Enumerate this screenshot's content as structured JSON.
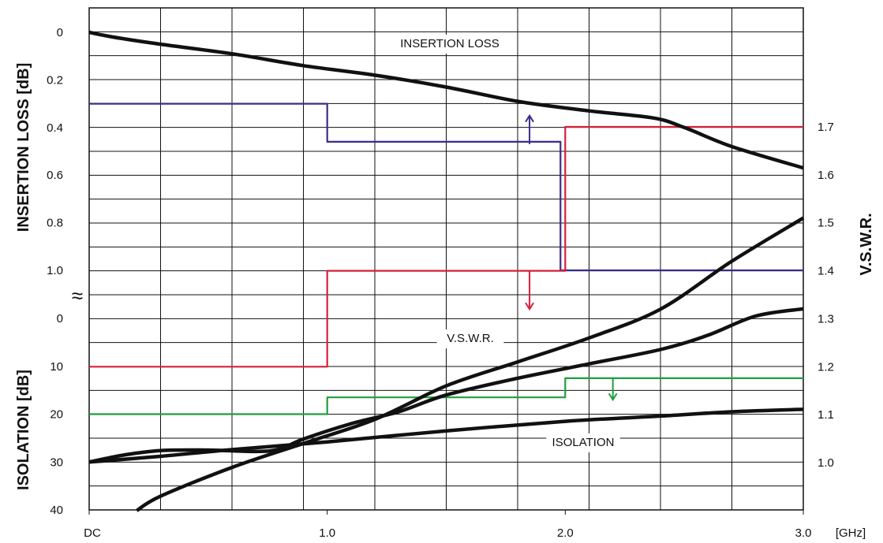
{
  "chart_data": {
    "type": "line",
    "x_axis": {
      "range": [
        0,
        3.0
      ],
      "tick_values": [
        0,
        1.0,
        2.0,
        3.0
      ],
      "tick_labels": [
        "DC",
        "1.0",
        "2.0",
        "3.0"
      ],
      "unit_label": "[GHz]",
      "grid": true
    },
    "left_axis_top": {
      "label": "INSERTION LOSS [dB]",
      "range": [
        0,
        1.0
      ],
      "inverted": true,
      "tick_values": [
        0,
        0.2,
        0.4,
        0.6,
        0.8,
        1.0
      ],
      "tick_labels": [
        "0",
        "0.2",
        "0.4",
        "0.6",
        "0.8",
        "1.0"
      ]
    },
    "left_axis_bottom": {
      "label": "ISOLATION [dB]",
      "range": [
        0,
        40
      ],
      "inverted": true,
      "tick_values": [
        0,
        10,
        20,
        30,
        40
      ],
      "tick_labels": [
        "0",
        "10",
        "20",
        "30",
        "40"
      ]
    },
    "axis_break_symbol": "≈",
    "right_axis": {
      "label": "V.S.W.R.",
      "range": [
        0.9,
        1.8
      ],
      "tick_values": [
        1.0,
        1.1,
        1.2,
        1.3,
        1.4,
        1.5,
        1.6,
        1.7
      ],
      "tick_labels": [
        "1.0",
        "1.1",
        "1.2",
        "1.3",
        "1.4",
        "1.5",
        "1.6",
        "1.7"
      ]
    },
    "annotations": [
      "INSERTION   LOSS",
      "V.S.W.R.",
      "ISOLATION"
    ],
    "series": [
      {
        "axis": "insertion_loss",
        "style": "curve",
        "color": "#111111",
        "points": [
          [
            0,
            0
          ],
          [
            0.1,
            0.02
          ],
          [
            0.3,
            0.05
          ],
          [
            0.6,
            0.09
          ],
          [
            0.9,
            0.14
          ],
          [
            1.2,
            0.18
          ],
          [
            1.5,
            0.23
          ],
          [
            1.8,
            0.29
          ],
          [
            2.1,
            0.33
          ],
          [
            2.37,
            0.36
          ],
          [
            2.5,
            0.4
          ],
          [
            2.7,
            0.48
          ],
          [
            3.0,
            0.57
          ]
        ]
      },
      {
        "axis": "vswr",
        "style": "curve",
        "color": "#111111",
        "points": [
          [
            0.2,
            0.9
          ],
          [
            0.3,
            0.93
          ],
          [
            0.6,
            0.99
          ],
          [
            0.9,
            1.04
          ],
          [
            1.2,
            1.09
          ],
          [
            1.5,
            1.16
          ],
          [
            1.8,
            1.21
          ],
          [
            2.1,
            1.26
          ],
          [
            2.4,
            1.32
          ],
          [
            2.7,
            1.42
          ],
          [
            3.0,
            1.51
          ]
        ]
      },
      {
        "axis": "isolation",
        "style": "curve",
        "color": "#111111",
        "points": [
          [
            0,
            30
          ],
          [
            0.15,
            28.5
          ],
          [
            0.3,
            27.6
          ],
          [
            0.5,
            27.5
          ],
          [
            0.7,
            27.8
          ],
          [
            0.8,
            27.3
          ],
          [
            0.9,
            25.2
          ],
          [
            1.1,
            22.0
          ],
          [
            1.3,
            19.5
          ],
          [
            1.5,
            16.0
          ],
          [
            1.8,
            12.5
          ],
          [
            2.1,
            9.5
          ],
          [
            2.4,
            6.5
          ],
          [
            2.6,
            3.5
          ],
          [
            2.8,
            -0.5
          ],
          [
            3.0,
            -2.0
          ]
        ]
      },
      {
        "axis": "isolation",
        "style": "curve",
        "color": "#111111",
        "points": [
          [
            0,
            30
          ],
          [
            0.3,
            28.8
          ],
          [
            0.6,
            27.4
          ],
          [
            1.0,
            25.8
          ],
          [
            1.5,
            23.5
          ],
          [
            2.0,
            21.5
          ],
          [
            2.4,
            20.4
          ],
          [
            2.7,
            19.5
          ],
          [
            3.0,
            19.0
          ]
        ]
      },
      {
        "axis": "insertion_loss",
        "style": "step",
        "color": "#3d2a8c",
        "points": [
          [
            0,
            0.3
          ],
          [
            1.0,
            0.3
          ],
          [
            1.0,
            0.46
          ],
          [
            1.98,
            0.46
          ],
          [
            1.98,
            1.0
          ],
          [
            3.0,
            1.0
          ]
        ]
      },
      {
        "axis": "vswr",
        "style": "step",
        "color": "#d61f3c",
        "points": [
          [
            0,
            1.2
          ],
          [
            1.0,
            1.2
          ],
          [
            1.0,
            1.4
          ],
          [
            2.0,
            1.4
          ],
          [
            2.0,
            1.7
          ],
          [
            3.0,
            1.7
          ]
        ]
      },
      {
        "axis": "isolation",
        "style": "step",
        "color": "#1f9e3c",
        "points": [
          [
            0,
            20
          ],
          [
            1.0,
            20
          ],
          [
            1.0,
            16.5
          ],
          [
            2.0,
            16.5
          ],
          [
            2.0,
            12.5
          ],
          [
            3.0,
            12.5
          ]
        ]
      }
    ],
    "spec_arrows": [
      {
        "color": "#3d2a8c",
        "x": 1.85,
        "from": 0.47,
        "to": 0.35,
        "axis": "insertion_loss"
      },
      {
        "color": "#d61f3c",
        "x": 1.85,
        "from": 1.4,
        "to": 1.32,
        "axis": "vswr"
      },
      {
        "color": "#1f9e3c",
        "x": 2.2,
        "from": 12.5,
        "to": 17,
        "axis": "isolation"
      }
    ]
  }
}
